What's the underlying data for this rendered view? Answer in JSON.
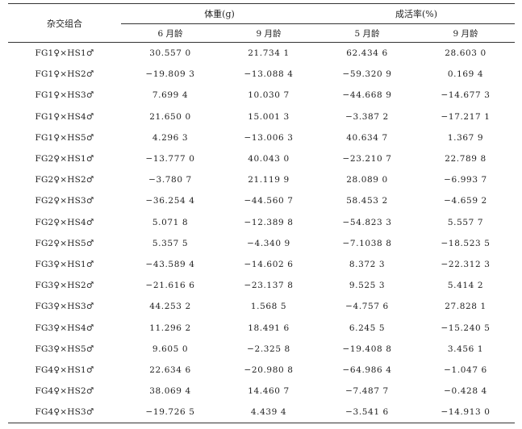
{
  "table": {
    "header": {
      "combo_label": "杂交组合",
      "weight_group": "体重(g)",
      "survival_group": "成活率(%)",
      "sub": [
        "6 月龄",
        "9 月龄",
        "5 月龄",
        "9 月龄"
      ]
    },
    "rows": [
      {
        "combo": "FG1♀×HS1♂",
        "w6": "30.557 0",
        "w9": "21.734 1",
        "s5": "62.434 6",
        "s9": "28.603 0"
      },
      {
        "combo": "FG1♀×HS2♂",
        "w6": "−19.809 3",
        "w9": "−13.088 4",
        "s5": "−59.320 9",
        "s9": "0.169 4"
      },
      {
        "combo": "FG1♀×HS3♂",
        "w6": "7.699 4",
        "w9": "10.030 7",
        "s5": "−44.668 9",
        "s9": "−14.677 3"
      },
      {
        "combo": "FG1♀×HS4♂",
        "w6": "21.650 0",
        "w9": "15.001 3",
        "s5": "−3.387 2",
        "s9": "−17.217 1"
      },
      {
        "combo": "FG1♀×HS5♂",
        "w6": "4.296 3",
        "w9": "−13.006 3",
        "s5": "40.634 7",
        "s9": "1.367 9"
      },
      {
        "combo": "FG2♀×HS1♂",
        "w6": "−13.777 0",
        "w9": "40.043 0",
        "s5": "−23.210 7",
        "s9": "22.789 8"
      },
      {
        "combo": "FG2♀×HS2♂",
        "w6": "−3.780 7",
        "w9": "21.119 9",
        "s5": "28.089 0",
        "s9": "−6.993 7"
      },
      {
        "combo": "FG2♀×HS3♂",
        "w6": "−36.254 4",
        "w9": "−44.560 7",
        "s5": "58.453 2",
        "s9": "−4.659 2"
      },
      {
        "combo": "FG2♀×HS4♂",
        "w6": "5.071 8",
        "w9": "−12.389 8",
        "s5": "−54.823 3",
        "s9": "5.557 7"
      },
      {
        "combo": "FG2♀×HS5♂",
        "w6": "5.357 5",
        "w9": "−4.340 9",
        "s5": "−7.1038 8",
        "s9": "−18.523 5"
      },
      {
        "combo": "FG3♀×HS1♂",
        "w6": "−43.589 4",
        "w9": "−14.602 6",
        "s5": "8.372 3",
        "s9": "−22.312 3"
      },
      {
        "combo": "FG3♀×HS2♂",
        "w6": "−21.616 6",
        "w9": "−23.137 8",
        "s5": "9.525 3",
        "s9": "5.414 2"
      },
      {
        "combo": "FG3♀×HS3♂",
        "w6": "44.253 2",
        "w9": "1.568 5",
        "s5": "−4.757 6",
        "s9": "27.828 1"
      },
      {
        "combo": "FG3♀×HS4♂",
        "w6": "11.296 2",
        "w9": "18.491 6",
        "s5": "6.245 5",
        "s9": "−15.240 5"
      },
      {
        "combo": "FG3♀×HS5♂",
        "w6": "9.605 0",
        "w9": "−2.325 8",
        "s5": "−19.408 8",
        "s9": "3.456 1"
      },
      {
        "combo": "FG4♀×HS1♂",
        "w6": "22.634 6",
        "w9": "−20.980 8",
        "s5": "−64.986 4",
        "s9": "−1.047 6"
      },
      {
        "combo": "FG4♀×HS2♂",
        "w6": "38.069 4",
        "w9": "14.460 7",
        "s5": "−7.487 7",
        "s9": "−0.428 4"
      },
      {
        "combo": "FG4♀×HS3♂",
        "w6": "−19.726 5",
        "w9": "4.439 4",
        "s5": "−3.541 6",
        "s9": "−14.913 0"
      }
    ]
  }
}
